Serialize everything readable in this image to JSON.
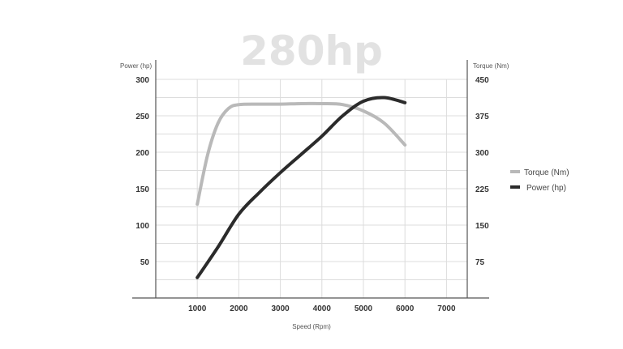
{
  "chart_data": {
    "type": "line",
    "title": "280hp",
    "xlabel": "Speed (Rpm)",
    "ylabel_left": "Power (hp)",
    "ylabel_right": "Torque (Nm)",
    "x_ticks": [
      1000,
      2000,
      3000,
      4000,
      5000,
      6000,
      7000
    ],
    "y_left_ticks": [
      50,
      100,
      150,
      200,
      250,
      300
    ],
    "y_right_ticks": [
      75,
      150,
      225,
      300,
      375,
      450
    ],
    "xlim": [
      0,
      7500
    ],
    "ylim_left": [
      0,
      300
    ],
    "ylim_right": [
      0,
      450
    ],
    "grid": true,
    "legend_position": "right",
    "series": [
      {
        "name": "Torque (Nm)",
        "axis": "right",
        "color": "#b9b9b9",
        "points": [
          [
            1000,
            193
          ],
          [
            1250,
            295
          ],
          [
            1500,
            360
          ],
          [
            1750,
            390
          ],
          [
            2000,
            398
          ],
          [
            2500,
            399
          ],
          [
            3000,
            399
          ],
          [
            3500,
            400
          ],
          [
            4000,
            400
          ],
          [
            4500,
            398
          ],
          [
            5000,
            385
          ],
          [
            5500,
            360
          ],
          [
            6000,
            315
          ]
        ]
      },
      {
        "name": "Power (hp)",
        "axis": "left",
        "color": "#2b2b2b",
        "points": [
          [
            1000,
            28
          ],
          [
            1500,
            70
          ],
          [
            2000,
            115
          ],
          [
            2500,
            145
          ],
          [
            3000,
            172
          ],
          [
            3500,
            197
          ],
          [
            4000,
            222
          ],
          [
            4500,
            250
          ],
          [
            5000,
            270
          ],
          [
            5500,
            275
          ],
          [
            6000,
            268
          ]
        ]
      }
    ]
  }
}
